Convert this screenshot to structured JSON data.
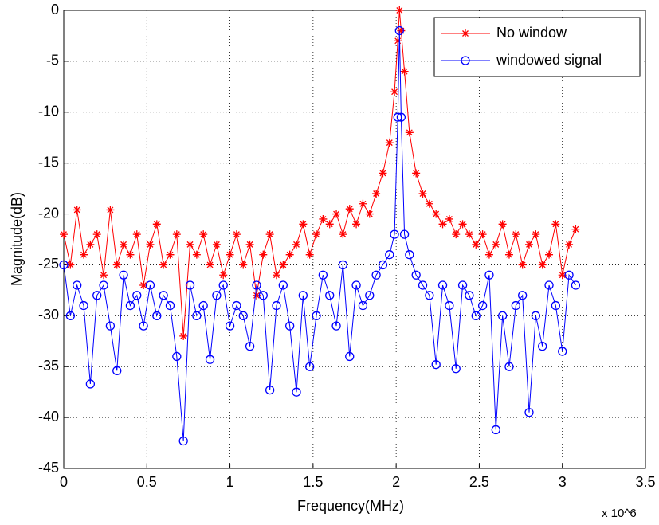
{
  "chart_data": {
    "type": "line",
    "xlabel": "Frequency(MHz)",
    "ylabel": "Magnitude(dB)",
    "x_multiplier": "x 10^6",
    "xlim": [
      0,
      3.5
    ],
    "xticks": [
      0,
      0.5,
      1,
      1.5,
      2,
      2.5,
      3,
      3.5
    ],
    "ylim": [
      -45,
      0
    ],
    "yticks": [
      -45,
      -40,
      -35,
      -30,
      -25,
      -20,
      -15,
      -10,
      -5,
      0
    ],
    "grid": true,
    "legend": "upper right",
    "x": [
      0,
      0.04,
      0.08,
      0.12,
      0.16,
      0.2,
      0.24,
      0.28,
      0.32,
      0.36,
      0.4,
      0.44,
      0.48,
      0.52,
      0.56,
      0.6,
      0.64,
      0.68,
      0.72,
      0.76,
      0.8,
      0.84,
      0.88,
      0.92,
      0.96,
      1,
      1.04,
      1.08,
      1.12,
      1.16,
      1.2,
      1.24,
      1.28,
      1.32,
      1.36,
      1.4,
      1.44,
      1.48,
      1.52,
      1.56,
      1.6,
      1.64,
      1.68,
      1.72,
      1.76,
      1.8,
      1.84,
      1.88,
      1.92,
      1.96,
      1.99,
      2.01,
      2.02,
      2.03,
      2.05,
      2.08,
      2.12,
      2.16,
      2.2,
      2.24,
      2.28,
      2.32,
      2.36,
      2.4,
      2.44,
      2.48,
      2.52,
      2.56,
      2.6,
      2.64,
      2.68,
      2.72,
      2.76,
      2.8,
      2.84,
      2.88,
      2.92,
      2.96,
      3,
      3.04,
      3.08
    ],
    "series": [
      {
        "name": "No window",
        "color": "#ff0000",
        "marker": "star",
        "values": [
          -22,
          -25,
          -19.6,
          -24,
          -23,
          -22,
          -26,
          -19.6,
          -25,
          -23,
          -24,
          -22,
          -27,
          -23,
          -21,
          -25,
          -24,
          -22,
          -32,
          -23,
          -24,
          -22,
          -25,
          -23,
          -26,
          -24,
          -22,
          -25,
          -23,
          -28,
          -24,
          -22,
          -26,
          -25,
          -24,
          -23,
          -21,
          -24,
          -22,
          -20.5,
          -21,
          -20,
          -22,
          -19.5,
          -21,
          -19,
          -20,
          -18,
          -16,
          -13,
          -8,
          -3,
          0,
          -2,
          -6,
          -12,
          -16,
          -18,
          -19,
          -20,
          -21,
          -20.5,
          -22,
          -21,
          -22,
          -23,
          -22,
          -24,
          -23,
          -21,
          -24,
          -22,
          -25,
          -23,
          -22,
          -25,
          -24,
          -21,
          -26,
          -23,
          -21.5
        ]
      },
      {
        "name": "windowed signal",
        "color": "#0000ff",
        "marker": "circle",
        "values": [
          -25,
          -30,
          -27,
          -29,
          -36.7,
          -28,
          -27,
          -31,
          -35.4,
          -26,
          -29,
          -28,
          -31,
          -27,
          -30,
          -28,
          -29,
          -34,
          -42.3,
          -27,
          -30,
          -29,
          -34.3,
          -28,
          -27,
          -31,
          -29,
          -30,
          -33,
          -27,
          -28,
          -37.3,
          -29,
          -27,
          -31,
          -37.5,
          -28,
          -35,
          -30,
          -26,
          -28,
          -31,
          -25,
          -34,
          -27,
          -29,
          -28,
          -26,
          -25,
          -24,
          -22,
          -10.5,
          -2,
          -10.5,
          -22,
          -24,
          -26,
          -27,
          -28,
          -34.8,
          -27,
          -29,
          -35.2,
          -27,
          -28,
          -30,
          -29,
          -26,
          -41.2,
          -30,
          -35,
          -29,
          -28,
          -39.5,
          -30,
          -33,
          -27,
          -29,
          -33.5,
          -26,
          -27
        ]
      }
    ]
  }
}
